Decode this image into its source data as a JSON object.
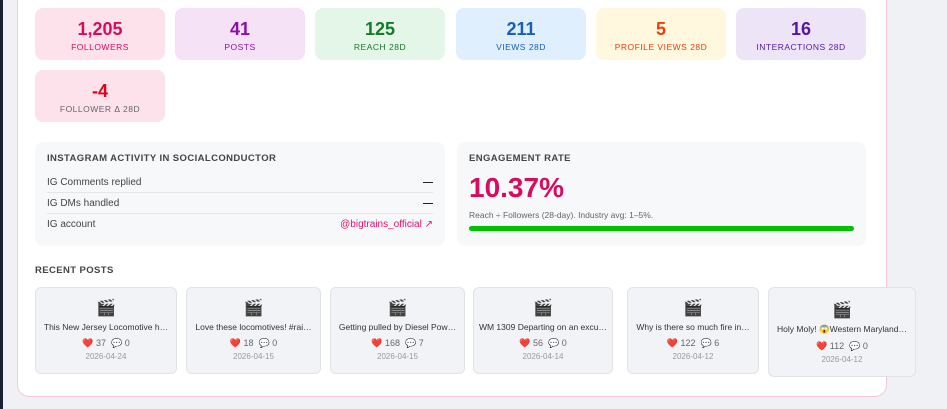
{
  "stats": [
    {
      "value": "1,205",
      "label": "FOLLOWERS",
      "bg": "#fde2ec",
      "color": "#d80b5e"
    },
    {
      "value": "41",
      "label": "POSTS",
      "bg": "#f5e2f6",
      "color": "#8e0fa8"
    },
    {
      "value": "125",
      "label": "REACH 28D",
      "bg": "#e3f6e7",
      "color": "#167a2c"
    },
    {
      "value": "211",
      "label": "VIEWS 28D",
      "bg": "#e0effd",
      "color": "#1560b8"
    },
    {
      "value": "5",
      "label": "PROFILE VIEWS 28D",
      "bg": "#fff8de",
      "color": "#e9400f"
    },
    {
      "value": "16",
      "label": "INTERACTIONS 28D",
      "bg": "#eee4f8",
      "color": "#5217a5"
    },
    {
      "value": "-4",
      "label": "FOLLOWER Δ 28D",
      "bg": "#fde2ec",
      "color": "#e0001b",
      "labelColor": "#666"
    }
  ],
  "activity": {
    "title": "INSTAGRAM ACTIVITY IN SOCIALCONDUCTOR",
    "rows": [
      {
        "label": "IG Comments replied",
        "value": "—"
      },
      {
        "label": "IG DMs handled",
        "value": "—"
      },
      {
        "label": "IG account",
        "value": "@bigtrains_official ↗"
      }
    ]
  },
  "engagement": {
    "title": "ENGAGEMENT RATE",
    "value": "10.37%",
    "note": "Reach ÷ Followers (28-day). Industry avg: 1–5%.",
    "bar_percent": 100
  },
  "recent_title": "RECENT POSTS",
  "posts": [
    {
      "icon": "🎬",
      "caption": "This New Jersey Locomotive h…",
      "likes": "37",
      "comments": "0",
      "date": "2026-04-24"
    },
    {
      "icon": "🎬",
      "caption": "Love these locomotives! #rai…",
      "likes": "18",
      "comments": "0",
      "date": "2026-04-15"
    },
    {
      "icon": "🎬",
      "caption": "Getting pulled by Diesel Pow…",
      "likes": "168",
      "comments": "7",
      "date": "2026-04-15"
    },
    {
      "icon": "🎬",
      "caption": "WM 1309 Departing on an excu…",
      "likes": "56",
      "comments": "0",
      "date": "2026-04-14"
    },
    {
      "icon": "🎬",
      "caption": "Why is there so much fire in…",
      "likes": "122",
      "comments": "6",
      "date": "2026-04-12"
    },
    {
      "icon": "🎬",
      "caption": "Holy Moly! 😱Western Maryland…",
      "likes": "112",
      "comments": "0",
      "date": "2026-04-12"
    }
  ]
}
